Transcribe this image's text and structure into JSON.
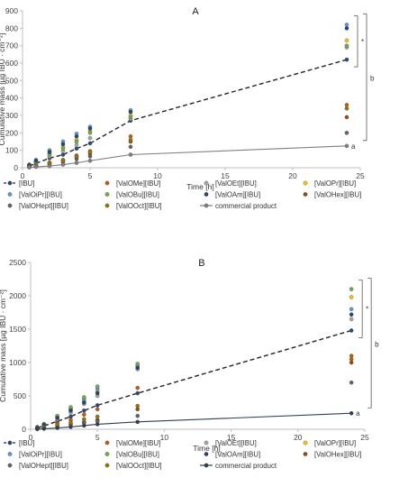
{
  "chart_data": [
    {
      "type": "scatter",
      "title": "A",
      "xlabel": "Time [h]",
      "ylabel": "Cumulative mass [µg IBU · cm⁻²]",
      "xlim": [
        0,
        25
      ],
      "ylim": [
        0,
        900
      ],
      "xticks": [
        "0",
        "5",
        "10",
        "15",
        "20",
        "25"
      ],
      "yticks": [
        "0",
        "100",
        "200",
        "300",
        "400",
        "500",
        "600",
        "700",
        "800",
        "900"
      ],
      "grid": false,
      "legend_position": "bottom",
      "x": [
        0.5,
        1,
        2,
        3,
        4,
        5,
        8,
        24
      ],
      "series": [
        {
          "name": "[IBU]",
          "color": "#1f4e79",
          "line": "dash",
          "values": [
            10,
            25,
            55,
            75,
            110,
            140,
            270,
            620
          ]
        },
        {
          "name": "[ValOMe][IBU]",
          "color": "#c55a11",
          "values": [
            7,
            15,
            30,
            45,
            70,
            95,
            180,
            360
          ]
        },
        {
          "name": "[ValOEt][IBU]",
          "color": "#a5a5a5",
          "values": [
            12,
            30,
            65,
            95,
            130,
            170,
            280,
            690
          ]
        },
        {
          "name": "[ValOPr][IBU]",
          "color": "#ffc000",
          "values": [
            14,
            35,
            80,
            120,
            160,
            210,
            300,
            730
          ]
        },
        {
          "name": "[ValOiPr][IBU]",
          "color": "#5b9bd5",
          "values": [
            18,
            45,
            100,
            150,
            195,
            235,
            330,
            820
          ]
        },
        {
          "name": "[ValOBu][IBU]",
          "color": "#70ad47",
          "values": [
            13,
            32,
            75,
            110,
            150,
            200,
            290,
            700
          ]
        },
        {
          "name": "[ValOAm][IBU]",
          "color": "#264478",
          "values": [
            16,
            40,
            90,
            135,
            180,
            225,
            320,
            800
          ]
        },
        {
          "name": "[ValOHex][IBU]",
          "color": "#9e480e",
          "values": [
            5,
            12,
            25,
            40,
            60,
            80,
            150,
            290
          ]
        },
        {
          "name": "[ValOHept][IBU]",
          "color": "#636363",
          "values": [
            4,
            10,
            20,
            32,
            50,
            65,
            120,
            200
          ]
        },
        {
          "name": "[ValOOct][IBU]",
          "color": "#997300",
          "values": [
            6,
            14,
            28,
            42,
            65,
            90,
            160,
            340
          ]
        },
        {
          "name": "commercial product",
          "color": "#7f7f7f",
          "line": "solid",
          "values": [
            2,
            5,
            10,
            18,
            28,
            40,
            75,
            125
          ]
        }
      ],
      "annotations": [
        "*",
        "b",
        "a"
      ]
    },
    {
      "type": "scatter",
      "title": "B",
      "xlabel": "Time [h]",
      "ylabel": "Cumulative mass [µg IBU · cm⁻²]",
      "xlim": [
        0,
        25
      ],
      "ylim": [
        0,
        2500
      ],
      "xticks": [
        "0",
        "5",
        "10",
        "15",
        "20",
        "25"
      ],
      "yticks": [
        "0",
        "500",
        "1000",
        "1500",
        "2000",
        "2500"
      ],
      "grid": false,
      "legend_position": "bottom",
      "x": [
        0.5,
        1,
        2,
        3,
        4,
        5,
        8,
        24
      ],
      "series": [
        {
          "name": "[IBU]",
          "color": "#1f4e79",
          "line": "dash",
          "values": [
            20,
            50,
            120,
            190,
            280,
            360,
            540,
            1480
          ]
        },
        {
          "name": "[ValOMe][IBU]",
          "color": "#c55a11",
          "values": [
            15,
            35,
            90,
            140,
            220,
            300,
            620,
            1050
          ]
        },
        {
          "name": "[ValOEt][IBU]",
          "color": "#a5a5a5",
          "values": [
            25,
            60,
            150,
            250,
            380,
            500,
            900,
            1650
          ]
        },
        {
          "name": "[ValOPr][IBU]",
          "color": "#ffc000",
          "values": [
            28,
            70,
            180,
            290,
            420,
            560,
            940,
            1980
          ]
        },
        {
          "name": "[ValOiPr][IBU]",
          "color": "#5b9bd5",
          "values": [
            30,
            75,
            190,
            310,
            450,
            600,
            960,
            1800
          ]
        },
        {
          "name": "[ValOBu][IBU]",
          "color": "#70ad47",
          "values": [
            32,
            80,
            200,
            330,
            480,
            640,
            980,
            2100
          ]
        },
        {
          "name": "[ValOAm][IBU]",
          "color": "#264478",
          "values": [
            27,
            68,
            170,
            280,
            400,
            540,
            920,
            1720
          ]
        },
        {
          "name": "[ValOHex][IBU]",
          "color": "#9e480e",
          "values": [
            10,
            25,
            55,
            80,
            110,
            140,
            300,
            1000
          ]
        },
        {
          "name": "[ValOHept][IBU]",
          "color": "#636363",
          "values": [
            8,
            20,
            45,
            65,
            95,
            120,
            200,
            700
          ]
        },
        {
          "name": "[ValOOct][IBU]",
          "color": "#997300",
          "values": [
            12,
            30,
            70,
            100,
            150,
            190,
            350,
            1100
          ]
        },
        {
          "name": "commercial product",
          "color": "#2f3e55",
          "line": "solid",
          "values": [
            3,
            8,
            20,
            35,
            55,
            75,
            110,
            240
          ]
        }
      ],
      "annotations": [
        "*",
        "b",
        "a"
      ]
    }
  ]
}
